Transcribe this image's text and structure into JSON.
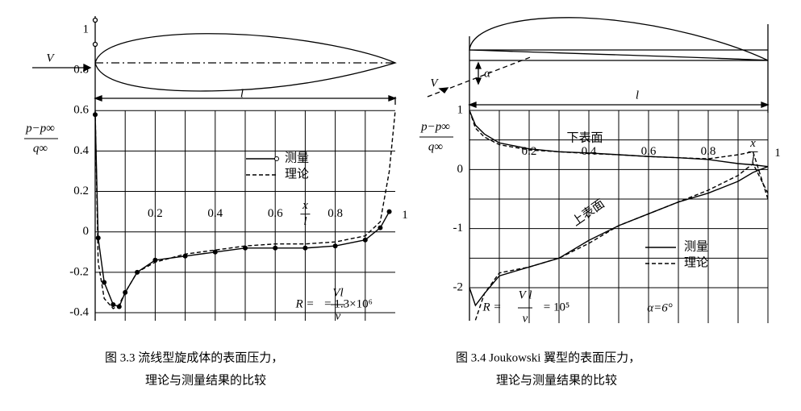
{
  "chart_data": [
    {
      "type": "line",
      "ylabel": [
        "p−p∞",
        "q∞"
      ],
      "xlabel": [
        "x",
        "l"
      ],
      "x": [
        0,
        0.01,
        0.03,
        0.06,
        0.08,
        0.1,
        0.14,
        0.2,
        0.3,
        0.4,
        0.5,
        0.6,
        0.7,
        0.8,
        0.9,
        0.95,
        0.98,
        1.0
      ],
      "series": [
        {
          "name": "测量",
          "color": "#000000",
          "style": "solid",
          "markers": true,
          "values": [
            0.58,
            -0.03,
            -0.25,
            -0.36,
            -0.37,
            -0.3,
            -0.2,
            -0.14,
            -0.12,
            -0.1,
            -0.08,
            -0.08,
            -0.08,
            -0.07,
            -0.04,
            0.02,
            0.1,
            null
          ]
        },
        {
          "name": "理论",
          "color": "#000000",
          "style": "dashed",
          "markers": false,
          "values": [
            0.6,
            -0.15,
            -0.33,
            -0.38,
            -0.36,
            -0.3,
            -0.2,
            -0.15,
            -0.11,
            -0.09,
            -0.07,
            -0.06,
            -0.06,
            -0.05,
            -0.02,
            0.05,
            0.3,
            0.6
          ]
        }
      ],
      "xlim": [
        0,
        1
      ],
      "xticks": [
        0.2,
        0.4,
        0.6,
        0.8,
        1.0
      ],
      "grid_xticks": [
        0.1,
        0.2,
        0.3,
        0.4,
        0.5,
        0.6,
        0.7,
        0.8,
        0.9
      ],
      "ylim": [
        -0.44,
        1.0
      ],
      "yticks": [
        1.0,
        0.8,
        0.6,
        0.4,
        0.2,
        0,
        -0.2,
        -0.4
      ],
      "grid_yticks": [
        0.6,
        0.4,
        0.2,
        0,
        -0.2,
        -0.4
      ],
      "annotations": [
        "V",
        "l",
        "R =",
        "Vl",
        "ν",
        "= 1.3×10⁶"
      ],
      "caption": [
        "图 3.3   流线型旋成体的表面压力，",
        "理论与测量结果的比较"
      ]
    },
    {
      "type": "line",
      "ylabel": [
        "p−p∞",
        "q∞"
      ],
      "xlabel": [
        "x",
        "l"
      ],
      "x": [
        0,
        0.02,
        0.05,
        0.1,
        0.2,
        0.3,
        0.4,
        0.5,
        0.6,
        0.7,
        0.8,
        0.9,
        0.95,
        1.0
      ],
      "series": [
        {
          "name": "测量",
          "color": "#000000",
          "style": "solid",
          "markers": false,
          "values": [
            -2.0,
            -2.3,
            -2.1,
            -1.8,
            -1.65,
            -1.5,
            -1.2,
            -0.95,
            -0.75,
            -0.55,
            -0.4,
            -0.2,
            -0.05,
            0.05
          ],
          "lower_values": [
            1,
            0.75,
            0.6,
            0.45,
            0.35,
            0.3,
            0.28,
            0.25,
            0.22,
            0.2,
            0.17,
            0.1,
            0.08,
            0.05
          ]
        },
        {
          "name": "理论",
          "color": "#000000",
          "style": "dashed",
          "markers": false,
          "values": [
            null,
            -2.55,
            -2.1,
            -1.75,
            -1.65,
            -1.5,
            -1.25,
            -0.95,
            -0.75,
            -0.55,
            -0.35,
            -0.1,
            0.1,
            -0.4
          ],
          "lower_values": [
            1,
            0.7,
            0.55,
            0.42,
            0.33,
            0.3,
            0.27,
            0.25,
            0.22,
            0.2,
            0.18,
            0.25,
            0.3,
            -0.5
          ]
        }
      ],
      "xlim": [
        0,
        1
      ],
      "xticks": [
        0.2,
        0.4,
        0.6,
        0.8,
        1.0
      ],
      "grid_xticks": [
        0.1,
        0.2,
        0.3,
        0.4,
        0.5,
        0.6,
        0.7,
        0.8,
        0.9,
        1.0
      ],
      "ylim": [
        -2.6,
        1.0
      ],
      "yticks": [
        1,
        0,
        -1,
        -2
      ],
      "grid_yticks": [
        1,
        0.5,
        0,
        -0.5,
        -1,
        -1.5,
        -2
      ],
      "annotations": [
        "V",
        "α",
        "l",
        "下表面",
        "上表面",
        "R =",
        "V l",
        "ν",
        "= 10⁵",
        "α=6°"
      ],
      "caption": [
        "图 3.4   Joukowski 翼型的表面压力，",
        "理论与测量结果的比较"
      ]
    }
  ]
}
